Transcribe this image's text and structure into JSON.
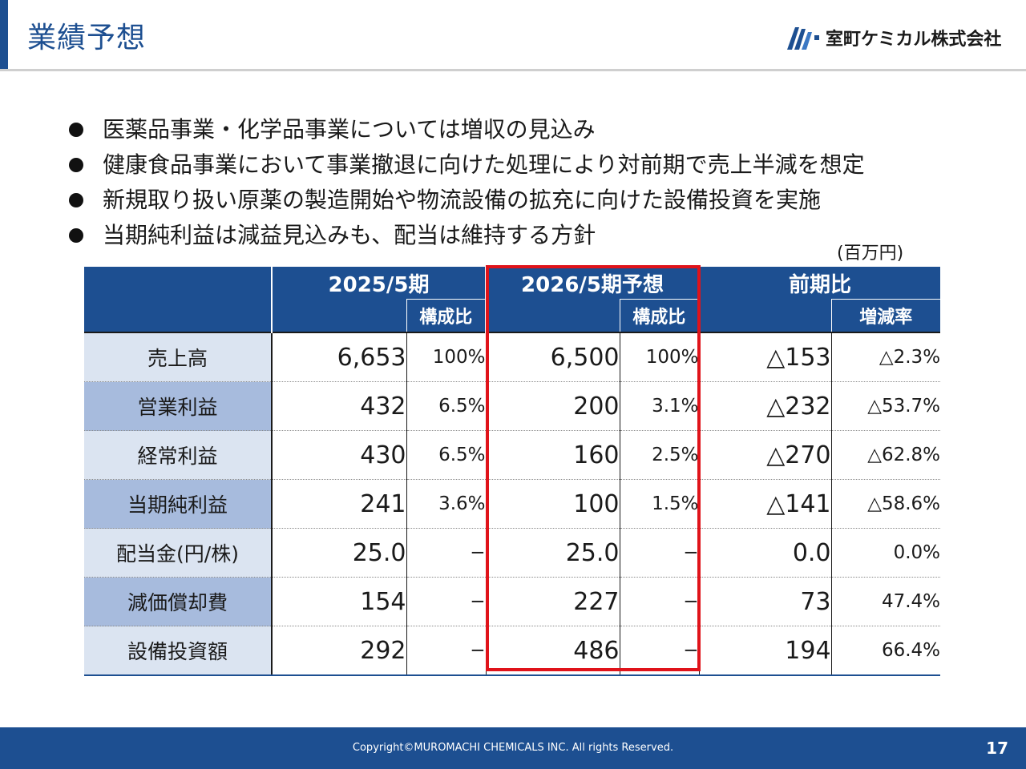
{
  "header": {
    "title": "業績予想",
    "company": "室町ケミカル株式会社"
  },
  "bullets": [
    "医薬品事業・化学品事業については増収の見込み",
    "健康食品事業において事業撤退に向けた処理により対前期で売上半減を想定",
    "新規取り扱い原薬の製造開始や物流設備の拡充に向けた設備投資を実施",
    "当期純利益は減益見込みも、配当は維持する方針"
  ],
  "unit": "(百万円)",
  "table": {
    "headers": {
      "fy2025": "2025/5期",
      "fy2026": "2026/5期予想",
      "yoy": "前期比",
      "ratio": "構成比",
      "rate": "増減率"
    },
    "rows": [
      {
        "label": "売上高",
        "fy2025": "6,653",
        "ratio2025": "100%",
        "fy2026": "6,500",
        "ratio2026": "100%",
        "diff": "△153",
        "rate": "△2.3%"
      },
      {
        "label": "営業利益",
        "fy2025": "432",
        "ratio2025": "6.5%",
        "fy2026": "200",
        "ratio2026": "3.1%",
        "diff": "△232",
        "rate": "△53.7%"
      },
      {
        "label": "経常利益",
        "fy2025": "430",
        "ratio2025": "6.5%",
        "fy2026": "160",
        "ratio2026": "2.5%",
        "diff": "△270",
        "rate": "△62.8%"
      },
      {
        "label": "当期純利益",
        "fy2025": "241",
        "ratio2025": "3.6%",
        "fy2026": "100",
        "ratio2026": "1.5%",
        "diff": "△141",
        "rate": "△58.6%"
      },
      {
        "label": "配当金(円/株)",
        "fy2025": "25.0",
        "ratio2025": "−",
        "fy2026": "25.0",
        "ratio2026": "−",
        "diff": "0.0",
        "rate": "0.0%"
      },
      {
        "label": "減価償却費",
        "fy2025": "154",
        "ratio2025": "−",
        "fy2026": "227",
        "ratio2026": "−",
        "diff": "73",
        "rate": "47.4%"
      },
      {
        "label": "設備投資額",
        "fy2025": "292",
        "ratio2025": "−",
        "fy2026": "486",
        "ratio2026": "−",
        "diff": "194",
        "rate": "66.4%"
      }
    ]
  },
  "footer": {
    "copyright": "Copyright©MUROMACHI CHEMICALS INC. All rights Reserved.",
    "page": "17"
  },
  "colors": {
    "brand_blue": "#1d4f91",
    "highlight_red": "#e0131a",
    "row_light": "#dbe4f1",
    "row_dark": "#a7bbdd"
  }
}
